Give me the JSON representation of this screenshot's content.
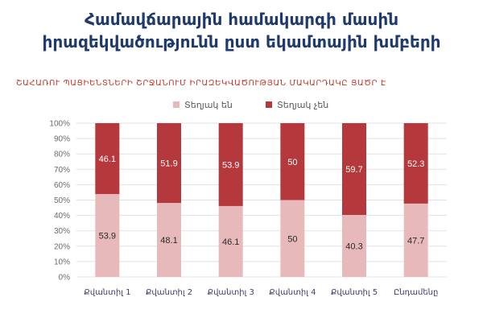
{
  "title_line1": "Համավճարային համակարգի մասին",
  "title_line2": "իրազեկվածությունն ըստ եկամտային խմբերի",
  "chart_data": {
    "type": "bar",
    "stacked": true,
    "title": "ՇԱՀԱՌՈՒ ՊԱՑԻԵՆՏՆԵՐԻ ՇՐՋԱՆՈՒՄ ԻՐԱԶԵԿՎԱԾՈՒԹՅԱՆ ՄԱԿԱՐԴԱԿԸ ՑԱԾՐ Է",
    "categories": [
      "Քվանտիլ 1",
      "Քվանտիլ 2",
      "Քվանտիլ 3",
      "Քվանտիլ 4",
      "Քվանտիլ 5",
      "Ընդամենը"
    ],
    "series": [
      {
        "name": "Տեղյակ են",
        "values": [
          53.9,
          48.1,
          46.1,
          50,
          40.3,
          47.7
        ],
        "color": "#e8b9bb"
      },
      {
        "name": "Տեղյակ չեն",
        "values": [
          46.1,
          51.9,
          53.9,
          50,
          59.7,
          52.3
        ],
        "color": "#b5383c"
      }
    ],
    "y_ticks": [
      "0%",
      "10%",
      "20%",
      "30%",
      "40%",
      "50%",
      "60%",
      "70%",
      "80%",
      "90%",
      "100%"
    ],
    "ylim": [
      0,
      100
    ],
    "grid": true,
    "legend_position": "top"
  }
}
